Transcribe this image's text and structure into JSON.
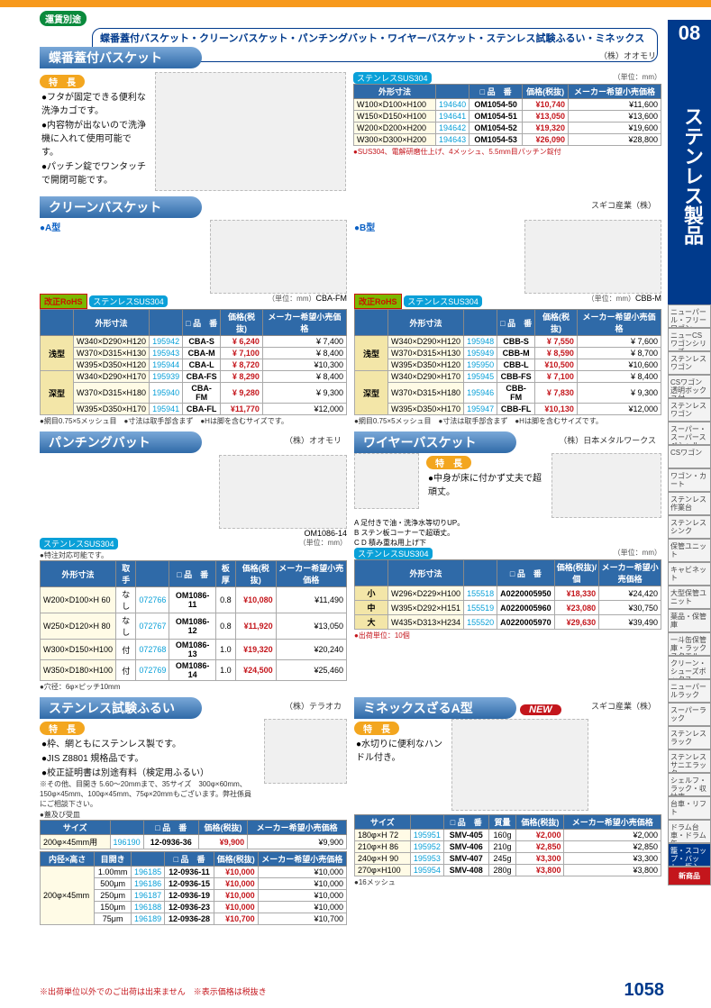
{
  "shipbadge": "運賃別途",
  "prodbar": "蝶番蓋付バスケット・クリーンバスケット・パンチングバット・ワイヤーバスケット・ステンレス試験ふるい・ミネックスざるA型",
  "side": {
    "num": "08",
    "vtitle": "ステンレス製品",
    "tabs": [
      "ニューパール・フリーワゴン",
      "ニューCSワゴンシリーズ",
      "ステンレスワゴン",
      "CSワゴン透明ボックス付",
      "ステンレスワゴン",
      "スーパー・スーパースペシャル",
      "CSワゴン",
      "ワゴン・カート",
      "ステンレス作業台",
      "ステンレスシンク",
      "保管ユニット",
      "キャビネット",
      "大型保管ユニット",
      "薬品・保管庫",
      "一斗缶保管庫・ラックスクエル",
      "クリーン・シューズボックス",
      "ニューパールラック",
      "スーパーラック",
      "ステンレスラック",
      "ステンレスサニエラック",
      "シェルフ・ラック・収納庫",
      "台車・リフト",
      "ドラム台車・ドラム缶",
      "籠・スコップ・バット・瓶入",
      "新商品"
    ]
  },
  "pgnum": "1058",
  "fnote": "※出荷単位以外でのご出荷は出来ません",
  "fnote2": "※表示価格は税抜き",
  "s1": {
    "title": "蝶番蓋付バスケット",
    "sup": "（株）オオモリ",
    "feat": "特　長",
    "bul": [
      "フタが固定できる便利な洗浄カゴです。",
      "内容物が出ないので洗浄機に入れて使用可能です。",
      "パッチン錠でワンタッチで開閉可能です。"
    ],
    "sus": "ステンレスSUS304",
    "unit": "（単位：mm）",
    "hdr": [
      "外形寸法",
      "",
      "□ 品　番",
      "価格(税抜)",
      "メーカー希望小売価格"
    ],
    "rows": [
      [
        "W100×D100×H100",
        "194640",
        "OM1054-50",
        "¥10,740",
        "¥11,600"
      ],
      [
        "W150×D150×H100",
        "194641",
        "OM1054-51",
        "¥13,050",
        "¥13,600"
      ],
      [
        "W200×D200×H200",
        "194642",
        "OM1054-52",
        "¥19,320",
        "¥19,600"
      ],
      [
        "W300×D300×H200",
        "194643",
        "OM1054-53",
        "¥26,090",
        "¥28,800"
      ]
    ],
    "notes": "●SUS304、電解研磨仕上げ、4メッシュ、5.5mm目パッチン錠付"
  },
  "s2": {
    "title": "クリーンバスケット",
    "supA": "",
    "supB": "スギコ産業（株）",
    "typeA": "●A型",
    "typeB": "●B型",
    "labelA": "CBA-FM",
    "labelB": "CBB-M",
    "rohs": "改正RoHS",
    "sus": "ステンレスSUS304",
    "unit": "（単位：mm）",
    "hdr": [
      "",
      "外形寸法",
      "",
      "□ 品　番",
      "価格(税抜)",
      "メーカー希望小売価格"
    ],
    "catA": [
      "浅型",
      "深型"
    ],
    "rowsA": [
      [
        "W340×D290×H120",
        "195942",
        "CBA-S",
        "¥ 6,240",
        "¥ 7,400"
      ],
      [
        "W370×D315×H130",
        "195943",
        "CBA-M",
        "¥ 7,100",
        "¥ 8,400"
      ],
      [
        "W395×D350×H120",
        "195944",
        "CBA-L",
        "¥ 8,720",
        "¥10,300"
      ],
      [
        "W340×D290×H170",
        "195939",
        "CBA-FS",
        "¥ 8,290",
        "¥ 8,400"
      ],
      [
        "W370×D315×H180",
        "195940",
        "CBA-FM",
        "¥ 9,280",
        "¥ 9,300"
      ],
      [
        "W395×D350×H170",
        "195941",
        "CBA-FL",
        "¥11,770",
        "¥12,000"
      ]
    ],
    "rowsB": [
      [
        "W340×D290×H120",
        "195948",
        "CBB-S",
        "¥ 7,550",
        "¥ 7,600"
      ],
      [
        "W370×D315×H130",
        "195949",
        "CBB-M",
        "¥ 8,590",
        "¥ 8,700"
      ],
      [
        "W395×D350×H120",
        "195950",
        "CBB-L",
        "¥10,500",
        "¥10,600"
      ],
      [
        "W340×D290×H170",
        "195945",
        "CBB-FS",
        "¥ 7,100",
        "¥ 8,400"
      ],
      [
        "W370×D315×H180",
        "195946",
        "CBB-FM",
        "¥ 7,830",
        "¥ 9,300"
      ],
      [
        "W395×D350×H170",
        "195947",
        "CBB-FL",
        "¥10,130",
        "¥12,000"
      ]
    ],
    "note": "●網目0.75×5メッシュ目　●寸法は取手部含まず　●Hは脚を含むサイズです。"
  },
  "s3": {
    "title": "パンチングバット",
    "sup": "（株）オオモリ",
    "label": "OM1086-14",
    "sus": "ステンレスSUS304",
    "unit": "（単位：mm）",
    "custom": "●特注対応可能です。",
    "hdr": [
      "外形寸法",
      "取手",
      "",
      "□ 品　番",
      "板厚",
      "価格(税抜)",
      "メーカー希望小売価格"
    ],
    "rows": [
      [
        "W200×D100×H 60",
        "なし",
        "072766",
        "OM1086-11",
        "0.8",
        "¥10,080",
        "¥11,490"
      ],
      [
        "W250×D120×H 80",
        "なし",
        "072767",
        "OM1086-12",
        "0.8",
        "¥11,920",
        "¥13,050"
      ],
      [
        "W300×D150×H100",
        "付",
        "072768",
        "OM1086-13",
        "1.0",
        "¥19,320",
        "¥20,240"
      ],
      [
        "W350×D180×H100",
        "付",
        "072769",
        "OM1086-14",
        "1.0",
        "¥24,500",
        "¥25,460"
      ]
    ],
    "note": "●穴径：6φ×ピッチ10mm"
  },
  "s4": {
    "title": "ワイヤーバスケット",
    "sup": "（株）日本メタルワークス",
    "feat": "特　長",
    "bul": [
      "中身が床に付かず丈夫で超頑丈。"
    ],
    "cap": [
      "A 足付きで油・洗浄水等切りUP。",
      "B ステン板コーナーで超頑丈。",
      "C D 積み重ね用上げ下",
      "ステンレスSUS304"
    ],
    "unit": "（単位：mm）",
    "hdr": [
      "",
      "外形寸法",
      "",
      "□ 品　番",
      "価格(税抜)/個",
      "メーカー希望小売価格"
    ],
    "rows": [
      [
        "小",
        "W296×D229×H100",
        "155518",
        "A0220005950",
        "¥18,330",
        "¥24,420"
      ],
      [
        "中",
        "W395×D292×H151",
        "155519",
        "A0220005960",
        "¥23,080",
        "¥30,750"
      ],
      [
        "大",
        "W435×D313×H234",
        "155520",
        "A0220005970",
        "¥29,630",
        "¥39,490"
      ]
    ],
    "note": "●出荷単位：10個"
  },
  "s5": {
    "title": "ステンレス試験ふるい",
    "sup": "（株）テラオカ",
    "feat": "特　長",
    "bul": [
      "枠、網ともにステンレス製です。",
      "JIS Z8801 規格品です。",
      "校正証明書は別途有料（検定用ふるい）"
    ],
    "extra": "※その他、目開き 5.60〜20mmまで、35サイズ　300φ×60mm、150φ×45mm、100φ×45mm、75φ×20mmもございます。弊社係員にご相談下さい。",
    "lid": "●蓋及び受皿",
    "hdrLid": [
      "サイズ",
      "",
      "□ 品　番",
      "価格(税抜)",
      "メーカー希望小売価格"
    ],
    "rowLid": [
      "200φ×45mm用",
      "196190",
      "12-0936-36",
      "¥9,900",
      "¥9,900"
    ],
    "hdr": [
      "内径×高さ",
      "目開き",
      "",
      "□ 品　番",
      "価格(税抜)",
      "メーカー希望小売価格"
    ],
    "sizelab": "200φ×45mm",
    "rows": [
      [
        "1.00mm",
        "196185",
        "12-0936-11",
        "¥10,000",
        "¥10,000"
      ],
      [
        "500μm",
        "196186",
        "12-0936-15",
        "¥10,000",
        "¥10,000"
      ],
      [
        "250μm",
        "196187",
        "12-0936-19",
        "¥10,000",
        "¥10,000"
      ],
      [
        "150μm",
        "196188",
        "12-0936-23",
        "¥10,000",
        "¥10,000"
      ],
      [
        "75μm",
        "196189",
        "12-0936-28",
        "¥10,700",
        "¥10,700"
      ]
    ]
  },
  "s6": {
    "title": "ミネックスざるA型",
    "sup": "スギコ産業（株）",
    "feat": "特　長",
    "new": "NEW",
    "bul": [
      "水切りに便利なハンドル付き。"
    ],
    "hdr": [
      "サイズ",
      "",
      "□ 品　番",
      "質量",
      "価格(税抜)",
      "メーカー希望小売価格"
    ],
    "rows": [
      [
        "180φ×H 72",
        "195951",
        "SMV-405",
        "160g",
        "¥2,000",
        "¥2,000"
      ],
      [
        "210φ×H 86",
        "195952",
        "SMV-406",
        "210g",
        "¥2,850",
        "¥2,850"
      ],
      [
        "240φ×H 90",
        "195953",
        "SMV-407",
        "245g",
        "¥3,300",
        "¥3,300"
      ],
      [
        "270φ×H100",
        "195954",
        "SMV-408",
        "280g",
        "¥3,800",
        "¥3,800"
      ]
    ],
    "note": "●16メッシュ"
  }
}
